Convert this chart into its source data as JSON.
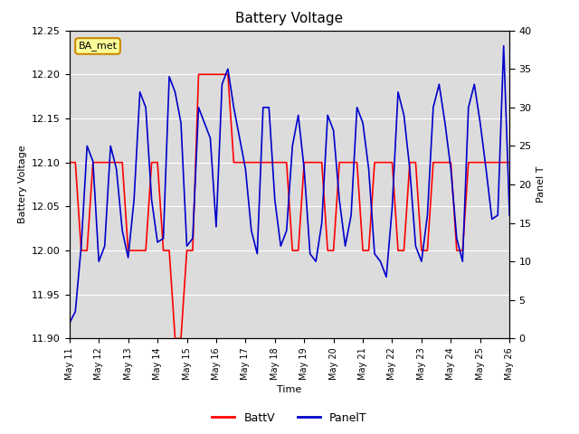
{
  "title": "Battery Voltage",
  "xlabel": "Time",
  "ylabel_left": "Battery Voltage",
  "ylabel_right": "Panel T",
  "legend_label_ba": "BA_met",
  "legend_label_battv": "BattV",
  "legend_label_panelt": "PanelT",
  "ylim_left": [
    11.9,
    12.25
  ],
  "ylim_right": [
    0,
    40
  ],
  "background_color": "#ffffff",
  "plot_bg_color": "#dcdcdc",
  "ba_met_bg": "#ffff99",
  "ba_met_border": "#cc8800",
  "x_tick_labels": [
    "May 11",
    "May 12",
    "May 13",
    "May 14",
    "May 15",
    "May 16",
    "May 17",
    "May 18",
    "May 19",
    "May 20",
    "May 21",
    "May 22",
    "May 23",
    "May 24",
    "May 25",
    "May 26"
  ],
  "battv_color": "#ff0000",
  "panelt_color": "#0000cc",
  "battv_lw": 1.2,
  "panelt_lw": 1.2,
  "battv_data": [
    12.1,
    12.1,
    12.0,
    12.0,
    12.1,
    12.1,
    12.1,
    12.1,
    12.1,
    12.1,
    12.0,
    12.0,
    12.0,
    12.0,
    12.1,
    12.1,
    12.0,
    12.0,
    11.9,
    11.9,
    12.0,
    12.0,
    12.2,
    12.2,
    12.2,
    12.2,
    12.2,
    12.2,
    12.1,
    12.1,
    12.1,
    12.1,
    12.1,
    12.1,
    12.1,
    12.1,
    12.1,
    12.1,
    12.0,
    12.0,
    12.1,
    12.1,
    12.1,
    12.1,
    12.0,
    12.0,
    12.1,
    12.1,
    12.1,
    12.1,
    12.0,
    12.0,
    12.1,
    12.1,
    12.1,
    12.1,
    12.0,
    12.0,
    12.1,
    12.1,
    12.0,
    12.0,
    12.1,
    12.1,
    12.1,
    12.1,
    12.0,
    12.0,
    12.1,
    12.1,
    12.1,
    12.1,
    12.1,
    12.1,
    12.1,
    12.1
  ],
  "panelt_data": [
    2.0,
    3.5,
    12.0,
    25.0,
    23.0,
    10.0,
    12.0,
    25.0,
    22.0,
    14.0,
    10.5,
    18.0,
    32.0,
    30.0,
    18.0,
    12.5,
    13.0,
    34.0,
    32.0,
    28.0,
    12.0,
    13.0,
    30.0,
    28.0,
    26.0,
    14.5,
    33.0,
    35.0,
    30.0,
    26.0,
    22.0,
    14.0,
    11.0,
    30.0,
    30.0,
    18.0,
    12.0,
    14.0,
    25.0,
    29.0,
    22.0,
    11.0,
    10.0,
    15.0,
    29.0,
    27.0,
    18.0,
    12.0,
    16.0,
    30.0,
    28.0,
    22.0,
    11.0,
    10.0,
    8.0,
    17.0,
    32.0,
    29.0,
    22.0,
    12.0,
    10.0,
    16.0,
    30.0,
    33.0,
    28.0,
    22.0,
    13.0,
    10.0,
    30.0,
    33.0,
    28.0,
    22.0,
    15.5,
    16.0,
    38.0,
    16.0
  ]
}
